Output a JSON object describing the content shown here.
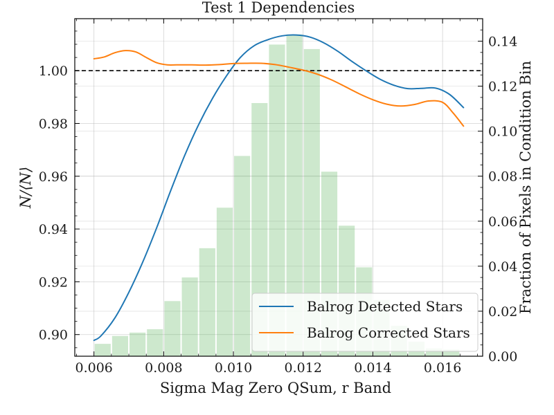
{
  "chart_data": {
    "type": "line",
    "title": "Test 1 Dependencies",
    "xlabel": "Sigma Mag Zero QSum, r Band",
    "ylabel": "N/⟨N⟩",
    "y2label": "Fraction of Pixels in Condition Bin",
    "xlim": [
      0.00545,
      0.01715
    ],
    "ylim": [
      0.8918,
      1.0197
    ],
    "y2lim": [
      0.0,
      0.15
    ],
    "x_ticks": [
      0.006,
      0.008,
      0.01,
      0.012,
      0.014,
      0.016
    ],
    "x_tick_labels": [
      "0.006",
      "0.008",
      "0.010",
      "0.012",
      "0.014",
      "0.016"
    ],
    "y_ticks": [
      0.9,
      0.92,
      0.94,
      0.96,
      0.98,
      1.0
    ],
    "y_tick_labels": [
      "0.90",
      "0.92",
      "0.94",
      "0.96",
      "0.98",
      "1.00"
    ],
    "y2_ticks": [
      0.0,
      0.02,
      0.04,
      0.06,
      0.08,
      0.1,
      0.12,
      0.14
    ],
    "y2_tick_labels": [
      "0.00",
      "0.02",
      "0.04",
      "0.06",
      "0.08",
      "0.10",
      "0.12",
      "0.14"
    ],
    "reference_line": 1.0,
    "grid": true,
    "legend_position": "bottom-right",
    "series": [
      {
        "name": "Balrog Detected Stars",
        "color": "#1f77b4",
        "x": [
          0.006,
          0.0062,
          0.0066,
          0.007,
          0.0074,
          0.0078,
          0.0082,
          0.0086,
          0.009,
          0.0094,
          0.0098,
          0.0102,
          0.0106,
          0.011,
          0.0114,
          0.0118,
          0.0122,
          0.0126,
          0.013,
          0.0134,
          0.0138,
          0.0142,
          0.0146,
          0.015,
          0.0154,
          0.0158,
          0.0162,
          0.0166
        ],
        "y": [
          0.8978,
          0.8995,
          0.9063,
          0.916,
          0.9275,
          0.9405,
          0.9545,
          0.9678,
          0.9795,
          0.9895,
          0.998,
          1.005,
          1.0095,
          1.0118,
          1.0132,
          1.0135,
          1.0127,
          1.0105,
          1.0073,
          1.0035,
          1.0,
          0.9968,
          0.9945,
          0.9932,
          0.9933,
          0.9934,
          0.991,
          0.986
        ]
      },
      {
        "name": "Balrog Corrected Stars",
        "color": "#ff7f0e",
        "x": [
          0.006,
          0.0063,
          0.0066,
          0.0069,
          0.0072,
          0.0075,
          0.0078,
          0.0081,
          0.0084,
          0.0088,
          0.0092,
          0.0096,
          0.01,
          0.0104,
          0.0108,
          0.0112,
          0.0116,
          0.012,
          0.0124,
          0.0128,
          0.0132,
          0.0136,
          0.014,
          0.0144,
          0.0148,
          0.0152,
          0.0156,
          0.016,
          0.0163,
          0.0166
        ],
        "y": [
          1.0045,
          1.0052,
          1.0068,
          1.0076,
          1.0071,
          1.005,
          1.003,
          1.0022,
          1.0022,
          1.0022,
          1.0021,
          1.0023,
          1.0027,
          1.0028,
          1.0028,
          1.0023,
          1.0013,
          1.0002,
          0.9987,
          0.9966,
          0.994,
          0.9913,
          0.989,
          0.9873,
          0.9866,
          0.9872,
          0.9885,
          0.988,
          0.984,
          0.979
        ]
      }
    ],
    "histogram": {
      "color": "#2ca02c",
      "bin_centers": [
        0.00625,
        0.00675,
        0.00725,
        0.00775,
        0.00825,
        0.00875,
        0.00925,
        0.00975,
        0.01025,
        0.01075,
        0.01125,
        0.01175,
        0.01225,
        0.01275,
        0.01325,
        0.01375,
        0.01425,
        0.01475,
        0.01525,
        0.01575,
        0.01625
      ],
      "bin_width": 0.0005,
      "values": [
        0.0055,
        0.009,
        0.0105,
        0.012,
        0.0245,
        0.035,
        0.048,
        0.066,
        0.089,
        0.1125,
        0.1385,
        0.143,
        0.1365,
        0.082,
        0.058,
        0.0395,
        0.025,
        0.0135,
        0.0065,
        0.0035,
        0.003
      ]
    }
  }
}
